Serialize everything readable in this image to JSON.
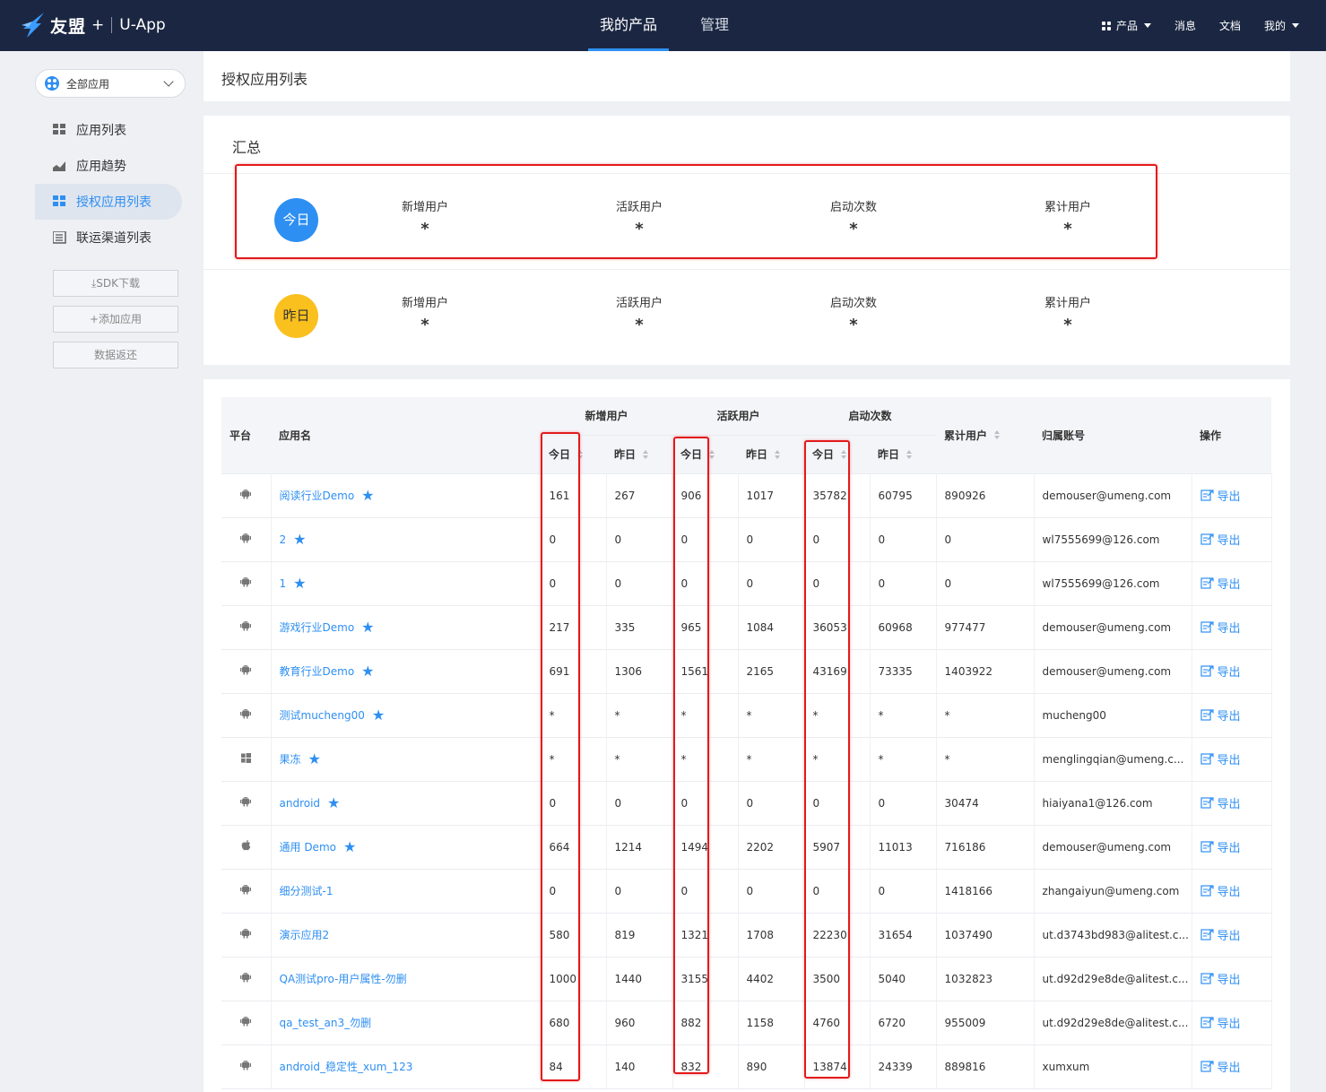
{
  "header": {
    "brand": "友盟",
    "brand_plus": "+",
    "app_name": "U-App",
    "nav": [
      {
        "label": "我的产品"
      },
      {
        "label": "管理"
      }
    ],
    "right": {
      "products": "产品",
      "messages": "消息",
      "docs": "文档",
      "mine": "我的"
    }
  },
  "sidebar": {
    "app_select": "全部应用",
    "items": [
      {
        "label": "应用列表",
        "icon": "grid-icon"
      },
      {
        "label": "应用趋势",
        "icon": "trend-icon"
      },
      {
        "label": "授权应用列表",
        "icon": "grid-icon",
        "active": true
      },
      {
        "label": "联运渠道列表",
        "icon": "list-icon"
      }
    ],
    "buttons": {
      "sdk": "SDK下载",
      "add_app": "添加应用",
      "data_return": "数据返还"
    }
  },
  "page": {
    "title": "授权应用列表"
  },
  "summary": {
    "title": "汇总",
    "today": {
      "badge": "今日",
      "metrics": [
        {
          "label": "新增用户",
          "value": "*"
        },
        {
          "label": "活跃用户",
          "value": "*"
        },
        {
          "label": "启动次数",
          "value": "*"
        },
        {
          "label": "累计用户",
          "value": "*"
        }
      ]
    },
    "yesterday": {
      "badge": "昨日",
      "metrics": [
        {
          "label": "新增用户",
          "value": "*"
        },
        {
          "label": "活跃用户",
          "value": "*"
        },
        {
          "label": "启动次数",
          "value": "*"
        },
        {
          "label": "累计用户",
          "value": "*"
        }
      ]
    }
  },
  "table": {
    "headers": {
      "platform": "平台",
      "app_name": "应用名",
      "new_users": "新增用户",
      "active_users": "活跃用户",
      "launches": "启动次数",
      "total_users": "累计用户",
      "account": "归属账号",
      "action": "操作",
      "today": "今日",
      "yesterday": "昨日"
    },
    "export_label": "导出",
    "rows": [
      {
        "platform": "android",
        "name": "阅读行业Demo",
        "nu_t": "161",
        "nu_y": "267",
        "au_t": "906",
        "au_y": "1017",
        "l_t": "35782",
        "l_y": "60795",
        "total": "890926",
        "account": "demouser@umeng.com"
      },
      {
        "platform": "android",
        "name": "2",
        "nu_t": "0",
        "nu_y": "0",
        "au_t": "0",
        "au_y": "0",
        "l_t": "0",
        "l_y": "0",
        "total": "0",
        "account": "wl7555699@126.com"
      },
      {
        "platform": "android",
        "name": "1",
        "nu_t": "0",
        "nu_y": "0",
        "au_t": "0",
        "au_y": "0",
        "l_t": "0",
        "l_y": "0",
        "total": "0",
        "account": "wl7555699@126.com"
      },
      {
        "platform": "android",
        "name": "游戏行业Demo",
        "nu_t": "217",
        "nu_y": "335",
        "au_t": "965",
        "au_y": "1084",
        "l_t": "36053",
        "l_y": "60968",
        "total": "977477",
        "account": "demouser@umeng.com"
      },
      {
        "platform": "android",
        "name": "教育行业Demo",
        "nu_t": "691",
        "nu_y": "1306",
        "au_t": "1561",
        "au_y": "2165",
        "l_t": "43169",
        "l_y": "73335",
        "total": "1403922",
        "account": "demouser@umeng.com"
      },
      {
        "platform": "android",
        "name": "测试mucheng00",
        "nu_t": "*",
        "nu_y": "*",
        "au_t": "*",
        "au_y": "*",
        "l_t": "*",
        "l_y": "*",
        "total": "*",
        "account": "mucheng00"
      },
      {
        "platform": "windows",
        "name": "果冻",
        "nu_t": "*",
        "nu_y": "*",
        "au_t": "*",
        "au_y": "*",
        "l_t": "*",
        "l_y": "*",
        "total": "*",
        "account": "menglingqian@umeng.c..."
      },
      {
        "platform": "android",
        "name": "android",
        "nu_t": "0",
        "nu_y": "0",
        "au_t": "0",
        "au_y": "0",
        "l_t": "0",
        "l_y": "0",
        "total": "30474",
        "account": "hiaiyana1@126.com"
      },
      {
        "platform": "apple",
        "name": "通用 Demo",
        "nu_t": "664",
        "nu_y": "1214",
        "au_t": "1494",
        "au_y": "2202",
        "l_t": "5907",
        "l_y": "11013",
        "total": "716186",
        "account": "demouser@umeng.com"
      },
      {
        "platform": "android",
        "name": "细分测试-1",
        "nu_t": "0",
        "nu_y": "0",
        "au_t": "0",
        "au_y": "0",
        "l_t": "0",
        "l_y": "0",
        "total": "1418166",
        "account": "zhangaiyun@umeng.com"
      },
      {
        "platform": "android",
        "name": "演示应用2",
        "nu_t": "580",
        "nu_y": "819",
        "au_t": "1321",
        "au_y": "1708",
        "l_t": "22230",
        "l_y": "31654",
        "total": "1037490",
        "account": "ut.d3743bd983@alitest.c..."
      },
      {
        "platform": "android",
        "name": "QA测试pro-用户属性-勿删",
        "nu_t": "1000",
        "nu_y": "1440",
        "au_t": "3155",
        "au_y": "4402",
        "l_t": "3500",
        "l_y": "5040",
        "total": "1032823",
        "account": "ut.d92d29e8de@alitest.c..."
      },
      {
        "platform": "android",
        "name": "qa_test_an3_勿删",
        "nu_t": "680",
        "nu_y": "960",
        "au_t": "882",
        "au_y": "1158",
        "l_t": "4760",
        "l_y": "6720",
        "total": "955009",
        "account": "ut.d92d29e8de@alitest.c..."
      },
      {
        "platform": "android",
        "name": "android_稳定性_xum_123",
        "nu_t": "84",
        "nu_y": "140",
        "au_t": "832",
        "au_y": "890",
        "l_t": "13874",
        "l_y": "24339",
        "total": "889816",
        "account": "xumxum"
      }
    ],
    "starred_rows": [
      0,
      1,
      2,
      3,
      4,
      5,
      6,
      7,
      8
    ]
  },
  "colors": {
    "accent": "#2e8ff2",
    "nav_bg": "#1b2742",
    "highlight": "#e3191b",
    "today_badge": "#2e8ff2",
    "yesterday_badge": "#f9c01e"
  }
}
